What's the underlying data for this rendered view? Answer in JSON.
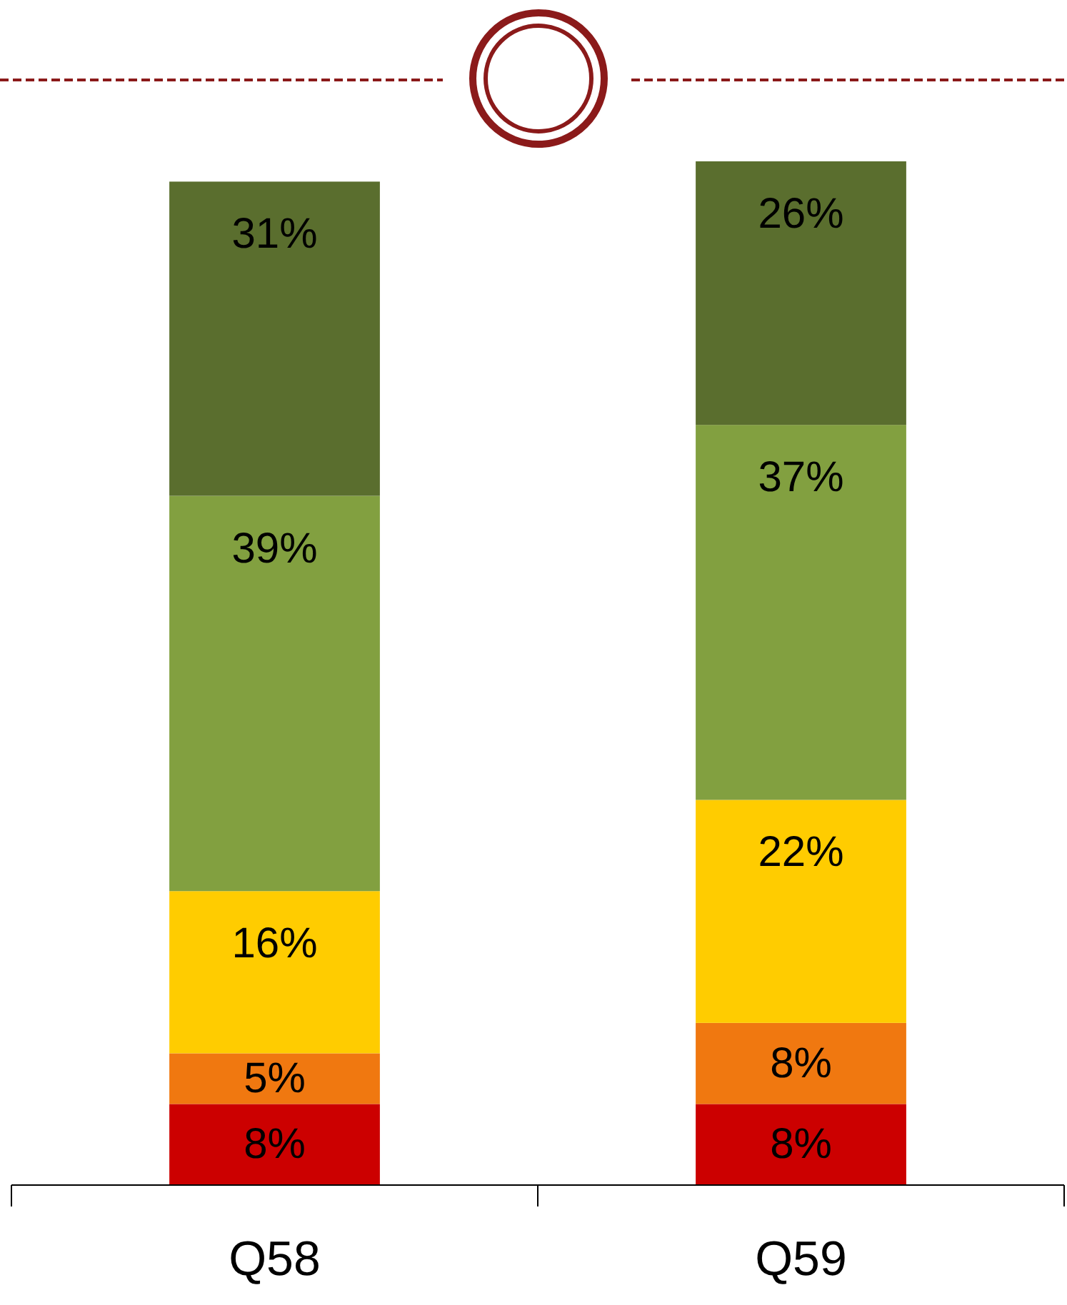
{
  "chart_data": {
    "type": "bar",
    "stacked": true,
    "categories": [
      "Q58",
      "Q59"
    ],
    "series": [
      {
        "color": "#cc0000",
        "values": [
          8,
          8
        ],
        "value_labels": [
          "8%",
          "8%"
        ]
      },
      {
        "color": "#f07810",
        "values": [
          5,
          8
        ],
        "value_labels": [
          "5%",
          "8%"
        ]
      },
      {
        "color": "#ffcc00",
        "values": [
          16,
          22
        ],
        "value_labels": [
          "16%",
          "22%"
        ]
      },
      {
        "color": "#82a040",
        "values": [
          39,
          37
        ],
        "value_labels": [
          "39%",
          "37%"
        ]
      },
      {
        "color": "#5a6e2e",
        "values": [
          31,
          26
        ],
        "value_labels": [
          "31%",
          "26%"
        ]
      }
    ]
  }
}
